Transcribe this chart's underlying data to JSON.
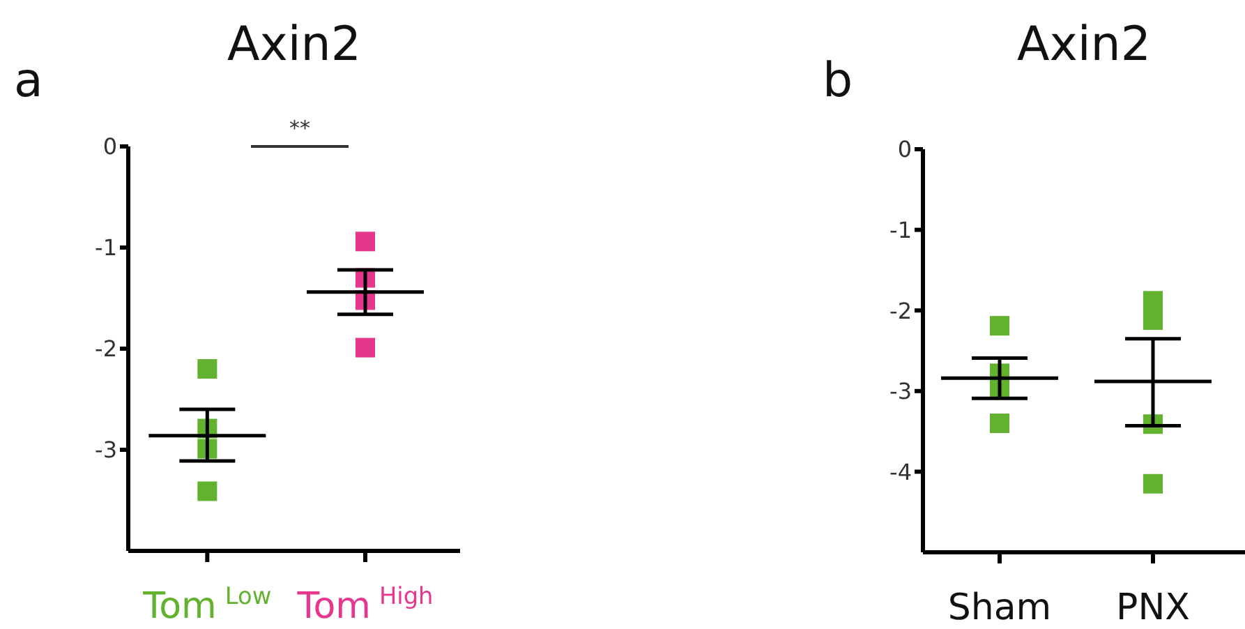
{
  "chart_data": [
    {
      "type": "scatter",
      "title": "Axin2",
      "categories": [
        "Tom$^{Low}$",
        "Tom$^{High}$"
      ],
      "ylim": [
        -4,
        0
      ],
      "yticks": [
        0,
        -1,
        -2,
        -3
      ],
      "annotations": [
        "a",
        "**"
      ],
      "series": [
        {
          "color": "#63b22f",
          "marker": "square",
          "x": [
            "Tom$^{Low}$",
            "Tom$^{Low}$",
            "Tom$^{Low}$",
            "Tom$^{Low}$"
          ],
          "values": [
            -2.2,
            -2.79,
            -2.99,
            -3.41
          ]
        },
        {
          "color": "#e6378f",
          "marker": "square",
          "x": [
            "Tom$^{High}$",
            "Tom$^{High}$",
            "Tom$^{High}$",
            "Tom$^{High}$"
          ],
          "values": [
            -0.94,
            -1.3,
            -1.52,
            -1.99
          ]
        },
        {
          "type": "box",
          "color": "#000000",
          "boxes": [
            {
              "low": -3.11,
              "q1": -2.86,
              "median": -2.86,
              "q3": -2.86,
              "high": -2.6
            },
            {
              "low": -1.66,
              "q1": -1.44,
              "median": -1.44,
              "q3": -1.44,
              "high": -1.22
            }
          ]
        }
      ]
    },
    {
      "type": "scatter",
      "title": "Axin2",
      "categories": [
        "Sham",
        "PNX"
      ],
      "ylim": [
        -5,
        0
      ],
      "yticks": [
        0,
        -1,
        -2,
        -3,
        -4
      ],
      "annotations": [
        "b"
      ],
      "series": [
        {
          "color": "#63b22f",
          "marker": "square",
          "x": [
            "Sham",
            "Sham",
            "Sham",
            "Sham",
            "PNX",
            "PNX",
            "PNX",
            "PNX"
          ],
          "values": [
            -2.19,
            -2.78,
            -2.97,
            -3.4,
            -1.88,
            -2.12,
            -3.41,
            -4.15
          ]
        },
        {
          "type": "box",
          "color": "#000000",
          "boxes": [
            {
              "low": -3.09,
              "q1": -2.84,
              "median": -2.84,
              "q3": -2.84,
              "high": -2.59
            },
            {
              "low": -3.43,
              "q1": -2.88,
              "median": -2.88,
              "q3": -2.88,
              "high": -2.35
            }
          ]
        }
      ]
    }
  ]
}
